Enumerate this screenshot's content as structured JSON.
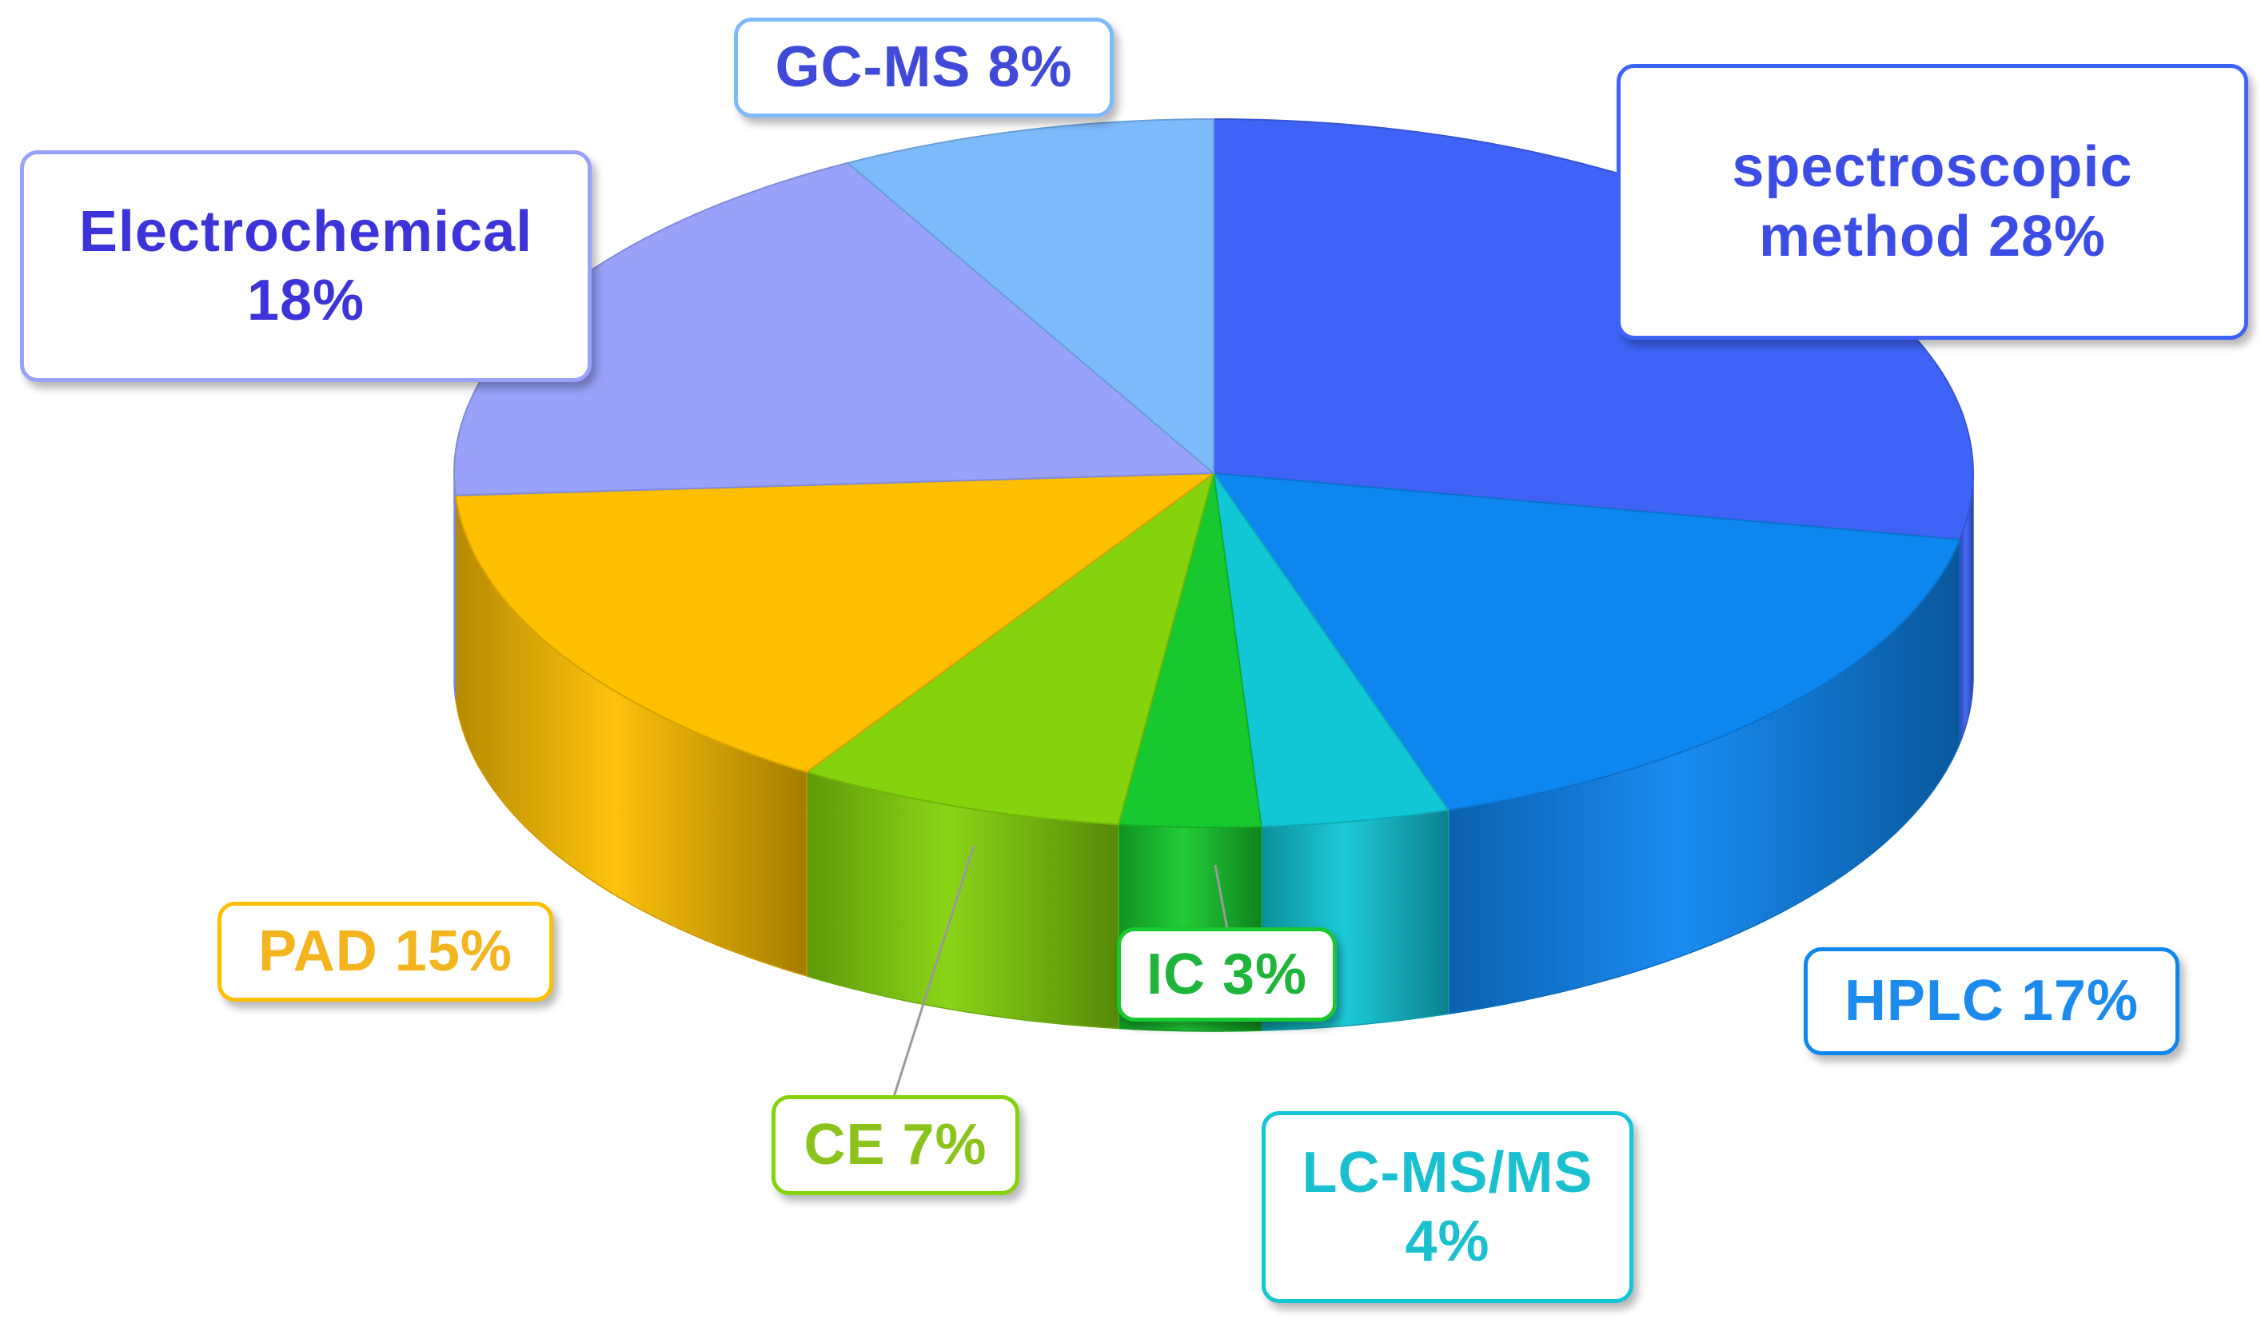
{
  "chart_data": {
    "type": "pie",
    "style": "3d-exploded-pie",
    "title": "",
    "slices": [
      {
        "label": "spectroscopic method",
        "value": 28,
        "display": "spectroscopic\nmethod 28%",
        "color": "#3F63F7",
        "label_color": "#3C4DE6"
      },
      {
        "label": "HPLC",
        "value": 17,
        "display": "HPLC 17%",
        "color": "#0E86F0",
        "label_color": "#1C8BEC"
      },
      {
        "label": "LC-MS/MS",
        "value": 4,
        "display": "LC-MS/MS\n4%",
        "color": "#11C7D6",
        "label_color": "#1BC0D0"
      },
      {
        "label": "IC",
        "value": 3,
        "display": "IC 3%",
        "color": "#17C92E",
        "label_color": "#1FB43A"
      },
      {
        "label": "CE",
        "value": 7,
        "display": "CE 7%",
        "color": "#84D30C",
        "label_color": "#8AC31C"
      },
      {
        "label": "PAD",
        "value": 15,
        "display": "PAD 15%",
        "color": "#FDBF00",
        "label_color": "#F3B41D"
      },
      {
        "label": "Electrochemical",
        "value": 18,
        "display": "Electrochemical\n18%",
        "color": "#98A2FB",
        "label_color": "#3C34D8"
      },
      {
        "label": "GC-MS",
        "value": 8,
        "display": "GC-MS 8%",
        "color": "#7DBAFB",
        "label_color": "#3F4BD8"
      }
    ]
  }
}
